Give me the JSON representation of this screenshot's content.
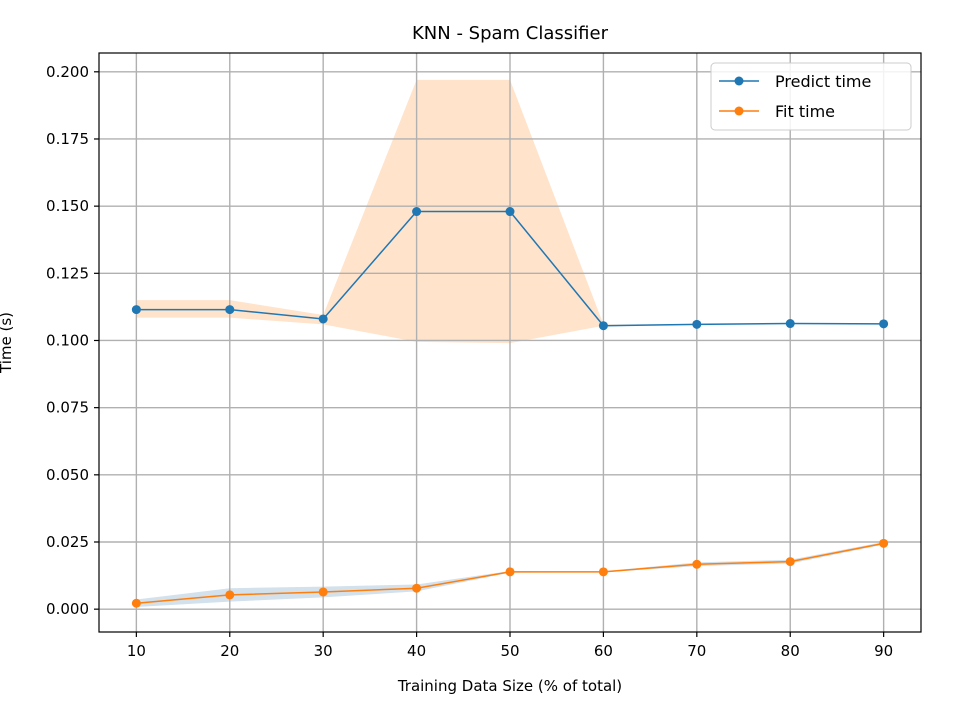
{
  "chart_data": {
    "type": "line",
    "title": "KNN - Spam Classifier",
    "xlabel": "Training Data Size (% of total)",
    "ylabel": "Time (s)",
    "x": [
      10,
      20,
      30,
      40,
      50,
      60,
      70,
      80,
      90
    ],
    "xlim": [
      6,
      94
    ],
    "ylim": [
      -0.0085,
      0.207
    ],
    "xticks": [
      "10",
      "20",
      "30",
      "40",
      "50",
      "60",
      "70",
      "80",
      "90"
    ],
    "yticks": [
      "0.000",
      "0.025",
      "0.050",
      "0.075",
      "0.100",
      "0.125",
      "0.150",
      "0.175",
      "0.200"
    ],
    "grid": true,
    "legend_position": "top-right",
    "series": [
      {
        "name": "Predict time",
        "color": "#1f77b4",
        "band_color": "#ffe3cb",
        "values": [
          0.1115,
          0.1115,
          0.108,
          0.148,
          0.148,
          0.1055,
          0.106,
          0.1063,
          0.1062
        ],
        "band_lower": [
          0.1085,
          0.1085,
          0.106,
          0.0995,
          0.099,
          0.1055,
          0.106,
          0.1063,
          0.1062
        ],
        "band_upper": [
          0.115,
          0.115,
          0.1095,
          0.197,
          0.197,
          0.106,
          0.106,
          0.1063,
          0.1062
        ]
      },
      {
        "name": "Fit time",
        "color": "#ff7f0e",
        "band_color": "#d3e1ec",
        "values": [
          0.0022,
          0.0053,
          0.0064,
          0.0078,
          0.0139,
          0.0139,
          0.0167,
          0.0177,
          0.0245
        ],
        "band_lower": [
          0.0008,
          0.0028,
          0.0044,
          0.0066,
          0.0136,
          0.0137,
          0.016,
          0.017,
          0.024
        ],
        "band_upper": [
          0.0036,
          0.0078,
          0.0084,
          0.0092,
          0.0142,
          0.0141,
          0.0174,
          0.0184,
          0.025
        ]
      }
    ]
  }
}
